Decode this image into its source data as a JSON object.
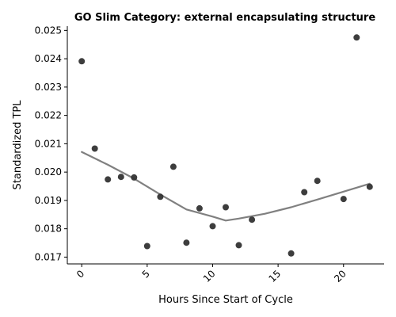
{
  "chart_data": {
    "type": "scatter",
    "title": "GO Slim Category: external encapsulating structure",
    "xlabel": "Hours Since Start of Cycle",
    "ylabel": "Standardized TPL",
    "xlim": [
      -1.1,
      23.1
    ],
    "ylim": [
      0.01676,
      0.02515
    ],
    "x_ticks": [
      0,
      5,
      10,
      15,
      20
    ],
    "x_tick_labels": [
      "0",
      "5",
      "10",
      "15",
      "20"
    ],
    "y_ticks": [
      0.017,
      0.018,
      0.019,
      0.02,
      0.021,
      0.022,
      0.023,
      0.024,
      0.025
    ],
    "y_tick_labels": [
      "0.017",
      "0.018",
      "0.019",
      "0.020",
      "0.021",
      "0.022",
      "0.023",
      "0.024",
      "0.025"
    ],
    "grid": false,
    "point_color": "#333333",
    "trend_color": "#808080",
    "points": [
      {
        "x": 0,
        "y": 0.02391
      },
      {
        "x": 1,
        "y": 0.02083
      },
      {
        "x": 2,
        "y": 0.01974
      },
      {
        "x": 3,
        "y": 0.01983
      },
      {
        "x": 4,
        "y": 0.01981
      },
      {
        "x": 5,
        "y": 0.01739
      },
      {
        "x": 6,
        "y": 0.01913
      },
      {
        "x": 7,
        "y": 0.02019
      },
      {
        "x": 8,
        "y": 0.01751
      },
      {
        "x": 9,
        "y": 0.01872
      },
      {
        "x": 10,
        "y": 0.01809
      },
      {
        "x": 11,
        "y": 0.01876
      },
      {
        "x": 12,
        "y": 0.01742
      },
      {
        "x": 13,
        "y": 0.01832
      },
      {
        "x": 16,
        "y": 0.01713
      },
      {
        "x": 17,
        "y": 0.01929
      },
      {
        "x": 18,
        "y": 0.01969
      },
      {
        "x": 20,
        "y": 0.01905
      },
      {
        "x": 21,
        "y": 0.02475
      },
      {
        "x": 22,
        "y": 0.01948
      }
    ],
    "trend": [
      {
        "x": 0,
        "y": 0.02071
      },
      {
        "x": 2,
        "y": 0.02026
      },
      {
        "x": 4,
        "y": 0.01977
      },
      {
        "x": 6,
        "y": 0.01921
      },
      {
        "x": 8,
        "y": 0.01868
      },
      {
        "x": 10,
        "y": 0.01843
      },
      {
        "x": 11,
        "y": 0.01829
      },
      {
        "x": 12,
        "y": 0.01836
      },
      {
        "x": 14,
        "y": 0.01853
      },
      {
        "x": 16,
        "y": 0.01876
      },
      {
        "x": 18,
        "y": 0.01903
      },
      {
        "x": 20,
        "y": 0.01931
      },
      {
        "x": 22,
        "y": 0.01959
      }
    ]
  }
}
